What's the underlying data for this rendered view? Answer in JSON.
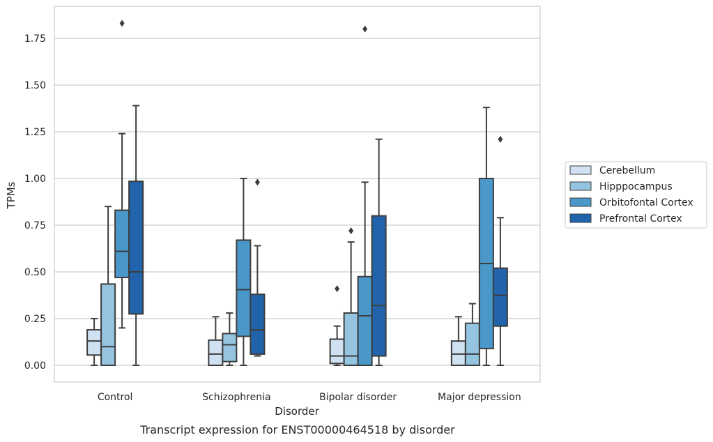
{
  "chart_data": {
    "type": "box",
    "title": "",
    "caption": "Transcript expression for ENST00000464518 by disorder",
    "xlabel": "Disorder",
    "ylabel": "TPMs",
    "ylim": [
      -0.09,
      1.93
    ],
    "yticks": [
      "0.00",
      "0.25",
      "0.50",
      "0.75",
      "1.00",
      "1.25",
      "1.50",
      "1.75"
    ],
    "ytick_values": [
      0,
      0.25,
      0.5,
      0.75,
      1.0,
      1.25,
      1.5,
      1.75
    ],
    "grid": true,
    "legend_position": "right",
    "categories": [
      "Control",
      "Schizophrenia",
      "Bipolar disorder",
      "Major depression"
    ],
    "series": [
      {
        "name": "Cerebellum",
        "color": "#d0e1f2",
        "boxes": [
          {
            "whislo": 0.0,
            "q1": 0.055,
            "med": 0.13,
            "q3": 0.19,
            "whishi": 0.25,
            "fliers": []
          },
          {
            "whislo": 0.0,
            "q1": 0.0,
            "med": 0.06,
            "q3": 0.135,
            "whishi": 0.26,
            "fliers": []
          },
          {
            "whislo": 0.0,
            "q1": 0.01,
            "med": 0.05,
            "q3": 0.14,
            "whishi": 0.21,
            "fliers": [
              0.41
            ]
          },
          {
            "whislo": 0.0,
            "q1": 0.0,
            "med": 0.06,
            "q3": 0.13,
            "whishi": 0.26,
            "fliers": []
          }
        ]
      },
      {
        "name": "Hipppocampus",
        "color": "#94c4df",
        "boxes": [
          {
            "whislo": 0.0,
            "q1": 0.0,
            "med": 0.1,
            "q3": 0.435,
            "whishi": 0.85,
            "fliers": []
          },
          {
            "whislo": 0.0,
            "q1": 0.02,
            "med": 0.11,
            "q3": 0.17,
            "whishi": 0.28,
            "fliers": []
          },
          {
            "whislo": 0.0,
            "q1": 0.0,
            "med": 0.05,
            "q3": 0.28,
            "whishi": 0.66,
            "fliers": [
              0.72
            ]
          },
          {
            "whislo": 0.0,
            "q1": 0.0,
            "med": 0.06,
            "q3": 0.225,
            "whishi": 0.33,
            "fliers": []
          }
        ]
      },
      {
        "name": "Orbitofontal Cortex",
        "color": "#4a98c9",
        "boxes": [
          {
            "whislo": 0.2,
            "q1": 0.47,
            "med": 0.61,
            "q3": 0.83,
            "whishi": 1.24,
            "fliers": [
              1.83
            ]
          },
          {
            "whislo": 0.0,
            "q1": 0.155,
            "med": 0.405,
            "q3": 0.67,
            "whishi": 1.0,
            "fliers": []
          },
          {
            "whislo": 0.0,
            "q1": 0.0,
            "med": 0.265,
            "q3": 0.475,
            "whishi": 0.98,
            "fliers": [
              1.8
            ]
          },
          {
            "whislo": 0.0,
            "q1": 0.09,
            "med": 0.545,
            "q3": 1.0,
            "whishi": 1.38,
            "fliers": []
          }
        ]
      },
      {
        "name": "Prefrontal Cortex",
        "color": "#2164ab",
        "boxes": [
          {
            "whislo": 0.0,
            "q1": 0.275,
            "med": 0.5,
            "q3": 0.985,
            "whishi": 1.39,
            "fliers": []
          },
          {
            "whislo": 0.05,
            "q1": 0.06,
            "med": 0.19,
            "q3": 0.38,
            "whishi": 0.64,
            "fliers": [
              0.98
            ]
          },
          {
            "whislo": 0.0,
            "q1": 0.05,
            "med": 0.32,
            "q3": 0.8,
            "whishi": 1.21,
            "fliers": []
          },
          {
            "whislo": 0.0,
            "q1": 0.21,
            "med": 0.375,
            "q3": 0.52,
            "whishi": 0.79,
            "fliers": [
              1.21
            ]
          }
        ]
      }
    ]
  }
}
